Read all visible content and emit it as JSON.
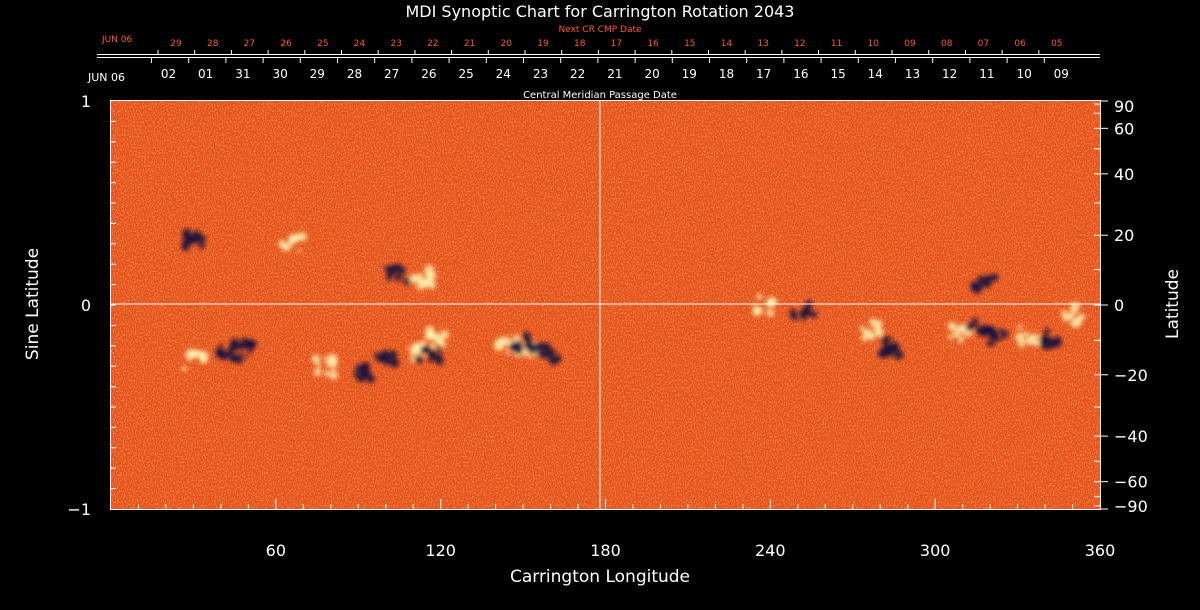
{
  "colors": {
    "background": "#000000",
    "axis": "#ffffff",
    "next_cr_label": "#ff5a1e",
    "field_base": "#e8501a",
    "positive_polarity": "#fff2b0",
    "negative_polarity": "#140a3c"
  },
  "chart_data": {
    "type": "heatmap",
    "title": "MDI Synoptic Chart for Carrington Rotation 2043",
    "xlabel": "Carrington Longitude",
    "ylabel_left": "Sine Latitude",
    "ylabel_right": "Latitude",
    "xlim": [
      0,
      360
    ],
    "ylim": [
      -1,
      1
    ],
    "grid": false,
    "x_ticks": [
      {
        "value": 60,
        "label": "60"
      },
      {
        "value": 120,
        "label": "120"
      },
      {
        "value": 180,
        "label": "180"
      },
      {
        "value": 240,
        "label": "240"
      },
      {
        "value": 300,
        "label": "300"
      },
      {
        "value": 360,
        "label": "360"
      }
    ],
    "y_left_ticks": [
      {
        "value": 1,
        "label": "1"
      },
      {
        "value": 0,
        "label": "0"
      },
      {
        "value": -1,
        "label": "−1"
      }
    ],
    "y_right_ticks": [
      {
        "value": 90,
        "label": "90"
      },
      {
        "value": 60,
        "label": "60"
      },
      {
        "value": 40,
        "label": "40"
      },
      {
        "value": 20,
        "label": "20"
      },
      {
        "value": 0,
        "label": "0"
      },
      {
        "value": -20,
        "label": "−20"
      },
      {
        "value": -40,
        "label": "−40"
      },
      {
        "value": -60,
        "label": "−60"
      },
      {
        "value": -90,
        "label": "−90"
      }
    ],
    "reference_lines": {
      "longitude": 180,
      "sine_latitude": 0
    },
    "cmp_axis": {
      "label": "Central Meridian Passage Date",
      "start_label": "JUN 06",
      "dates": [
        "02",
        "01",
        "31",
        "30",
        "29",
        "28",
        "27",
        "26",
        "25",
        "24",
        "23",
        "22",
        "21",
        "20",
        "19",
        "18",
        "17",
        "16",
        "15",
        "14",
        "13",
        "12",
        "11",
        "10",
        "09"
      ]
    },
    "next_cr_axis": {
      "label": "Next CR CMP Date",
      "start_label": "JUN 06",
      "dates": [
        "29",
        "28",
        "27",
        "26",
        "25",
        "24",
        "23",
        "22",
        "21",
        "20",
        "19",
        "18",
        "17",
        "16",
        "15",
        "14",
        "13",
        "12",
        "11",
        "10",
        "09",
        "08",
        "07",
        "06",
        "05"
      ]
    },
    "active_regions": [
      {
        "lon": 43,
        "sinlat": -0.23,
        "polarity": "negative"
      },
      {
        "lon": 48,
        "sinlat": -0.21,
        "polarity": "negative"
      },
      {
        "lon": 30,
        "sinlat": -0.28,
        "polarity": "positive"
      },
      {
        "lon": 78,
        "sinlat": -0.3,
        "polarity": "positive"
      },
      {
        "lon": 93,
        "sinlat": -0.33,
        "polarity": "negative"
      },
      {
        "lon": 100,
        "sinlat": -0.26,
        "polarity": "negative"
      },
      {
        "lon": 112,
        "sinlat": -0.23,
        "polarity": "positive"
      },
      {
        "lon": 116,
        "sinlat": -0.24,
        "polarity": "negative"
      },
      {
        "lon": 119,
        "sinlat": -0.16,
        "polarity": "positive"
      },
      {
        "lon": 104,
        "sinlat": 0.15,
        "polarity": "negative"
      },
      {
        "lon": 113,
        "sinlat": 0.13,
        "polarity": "positive"
      },
      {
        "lon": 145,
        "sinlat": -0.2,
        "polarity": "positive"
      },
      {
        "lon": 152,
        "sinlat": -0.22,
        "polarity": "positive"
      },
      {
        "lon": 159,
        "sinlat": -0.24,
        "polarity": "negative"
      },
      {
        "lon": 150,
        "sinlat": -0.19,
        "polarity": "negative"
      },
      {
        "lon": 30,
        "sinlat": 0.32,
        "polarity": "negative"
      },
      {
        "lon": 66,
        "sinlat": 0.3,
        "polarity": "positive"
      },
      {
        "lon": 238,
        "sinlat": 0.0,
        "polarity": "positive"
      },
      {
        "lon": 252,
        "sinlat": -0.03,
        "polarity": "negative"
      },
      {
        "lon": 276,
        "sinlat": -0.12,
        "polarity": "positive"
      },
      {
        "lon": 283,
        "sinlat": -0.2,
        "polarity": "negative"
      },
      {
        "lon": 309,
        "sinlat": -0.14,
        "polarity": "positive"
      },
      {
        "lon": 315,
        "sinlat": -0.12,
        "polarity": "negative"
      },
      {
        "lon": 322,
        "sinlat": -0.16,
        "polarity": "negative"
      },
      {
        "lon": 334,
        "sinlat": -0.15,
        "polarity": "positive"
      },
      {
        "lon": 341,
        "sinlat": -0.17,
        "polarity": "negative"
      },
      {
        "lon": 318,
        "sinlat": 0.1,
        "polarity": "negative"
      },
      {
        "lon": 350,
        "sinlat": -0.05,
        "polarity": "positive"
      }
    ]
  }
}
